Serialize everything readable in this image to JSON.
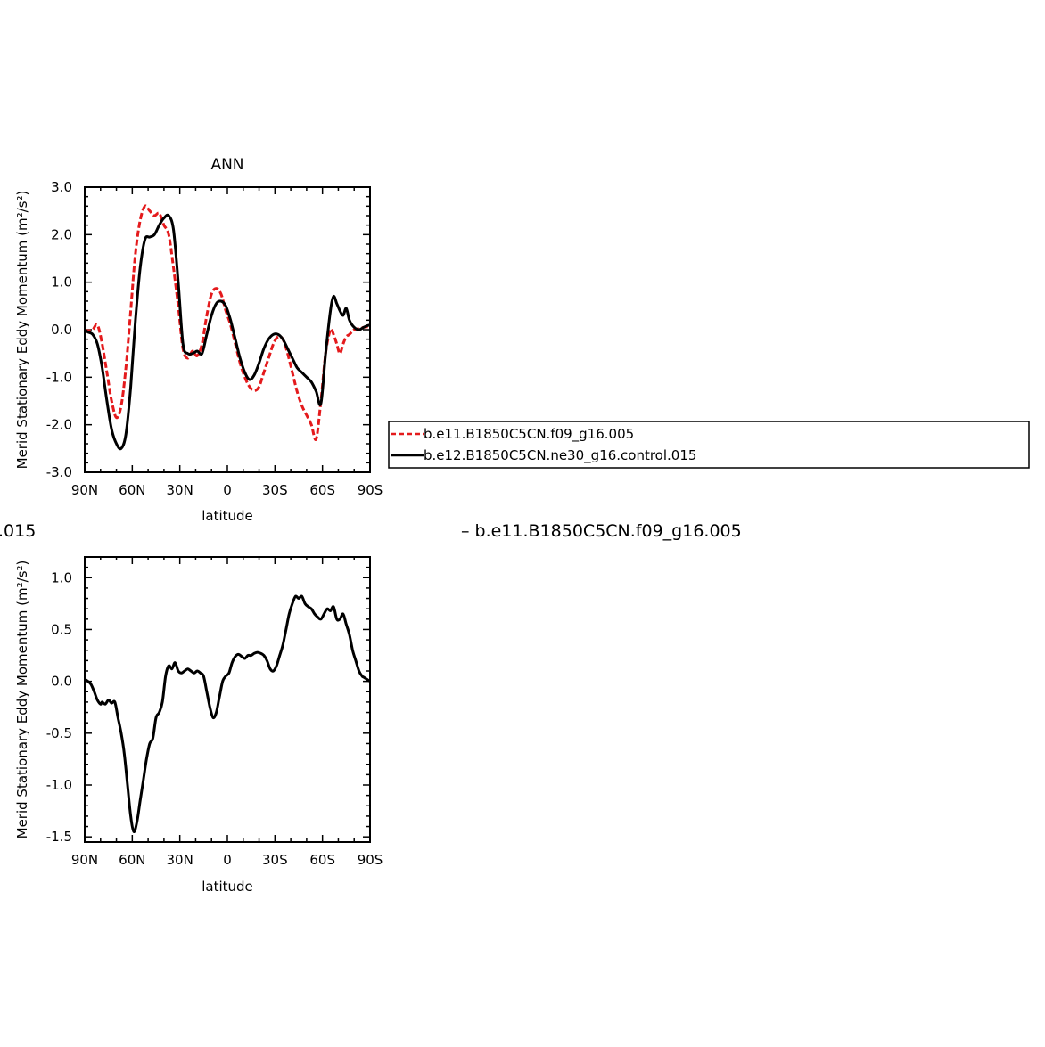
{
  "chart_data": [
    {
      "type": "line",
      "title": "ANN",
      "xlabel": "latitude",
      "ylabel": "Merid Stationary Eddy Momentum (m²/s²)",
      "xlim": [
        90,
        -90
      ],
      "ylim": [
        -3.0,
        3.0
      ],
      "x_ticks": [
        90,
        60,
        30,
        0,
        -30,
        -60,
        -90
      ],
      "x_tick_labels": [
        "90N",
        "60N",
        "30N",
        "0",
        "30S",
        "60S",
        "90S"
      ],
      "y_ticks": [
        3.0,
        2.0,
        1.0,
        0.0,
        -1.0,
        -2.0,
        -3.0
      ],
      "y_tick_labels": [
        "3.0",
        "2.0",
        "1.0",
        "0.0",
        "-1.0",
        "-2.0",
        "-3.0"
      ],
      "legend_position": "right",
      "series": [
        {
          "name": "b.e11.B1850C5CN.f09_g16.005",
          "color": "#e41a1c",
          "style": "dashed",
          "x": [
            90,
            88,
            85,
            82,
            79,
            76,
            73,
            70,
            67,
            64,
            61,
            58,
            55,
            52,
            49,
            46,
            43,
            40,
            37,
            34,
            31,
            28,
            25,
            22,
            19,
            16,
            13,
            10,
            7,
            4,
            1,
            -2,
            -5,
            -8,
            -11,
            -14,
            -17,
            -20,
            -23,
            -26,
            -29,
            -32,
            -35,
            -38,
            -41,
            -44,
            -47,
            -50,
            -53,
            -56,
            -59,
            -62,
            -65,
            -67,
            -69,
            -71,
            -73,
            -75,
            -77,
            -80,
            -83,
            -86,
            -88,
            -90
          ],
          "y": [
            0.0,
            -0.02,
            0.0,
            0.1,
            -0.3,
            -0.9,
            -1.5,
            -1.85,
            -1.6,
            -0.8,
            0.4,
            1.6,
            2.3,
            2.6,
            2.5,
            2.4,
            2.45,
            2.2,
            2.0,
            1.3,
            0.5,
            -0.4,
            -0.6,
            -0.45,
            -0.55,
            -0.3,
            0.3,
            0.75,
            0.87,
            0.75,
            0.4,
            0.1,
            -0.3,
            -0.7,
            -1.0,
            -1.2,
            -1.28,
            -1.2,
            -0.9,
            -0.6,
            -0.3,
            -0.15,
            -0.2,
            -0.5,
            -0.9,
            -1.3,
            -1.6,
            -1.8,
            -2.0,
            -2.3,
            -1.5,
            -0.5,
            0.0,
            -0.1,
            -0.3,
            -0.5,
            -0.3,
            -0.15,
            -0.1,
            0.0,
            0.02,
            0.05,
            0.06,
            0.05
          ]
        },
        {
          "name": "b.e12.B1850C5CN.ne30_g16.control.015",
          "color": "#000000",
          "style": "solid",
          "x": [
            90,
            88,
            85,
            82,
            79,
            76,
            73,
            70,
            67,
            64,
            61,
            58,
            55,
            52,
            49,
            46,
            43,
            40,
            37,
            34,
            31,
            28,
            25,
            22,
            19,
            16,
            13,
            10,
            7,
            4,
            1,
            -2,
            -5,
            -8,
            -11,
            -14,
            -17,
            -20,
            -23,
            -26,
            -29,
            -32,
            -35,
            -38,
            -41,
            -44,
            -47,
            -50,
            -53,
            -56,
            -59,
            -62,
            -65,
            -67,
            -69,
            -71,
            -73,
            -75,
            -77,
            -80,
            -83,
            -86,
            -88,
            -90
          ],
          "y": [
            0.0,
            -0.05,
            -0.1,
            -0.3,
            -0.8,
            -1.5,
            -2.1,
            -2.4,
            -2.5,
            -2.2,
            -1.2,
            0.2,
            1.3,
            1.9,
            1.95,
            2.0,
            2.2,
            2.35,
            2.4,
            2.1,
            1.0,
            -0.3,
            -0.5,
            -0.5,
            -0.45,
            -0.5,
            -0.1,
            0.3,
            0.55,
            0.6,
            0.5,
            0.2,
            -0.2,
            -0.6,
            -0.9,
            -1.05,
            -0.95,
            -0.7,
            -0.4,
            -0.2,
            -0.1,
            -0.1,
            -0.2,
            -0.4,
            -0.6,
            -0.8,
            -0.9,
            -1.0,
            -1.1,
            -1.3,
            -1.55,
            -0.5,
            0.4,
            0.7,
            0.55,
            0.4,
            0.3,
            0.45,
            0.2,
            0.05,
            0.0,
            0.05,
            0.08,
            0.1
          ]
        }
      ]
    },
    {
      "type": "line",
      "title": "",
      "xlabel": "latitude",
      "ylabel": "Merid Stationary Eddy Momentum (m²/s²)",
      "xlim": [
        90,
        -90
      ],
      "ylim": [
        -1.55,
        1.2
      ],
      "x_ticks": [
        90,
        60,
        30,
        0,
        -30,
        -60,
        -90
      ],
      "x_tick_labels": [
        "90N",
        "60N",
        "30N",
        "0",
        "30S",
        "60S",
        "90S"
      ],
      "y_ticks": [
        1.0,
        0.5,
        0.0,
        -0.5,
        -1.0,
        -1.5
      ],
      "y_tick_labels": [
        "1.0",
        "0.5",
        "0.0",
        "-0.5",
        "-1.0",
        "-1.5"
      ],
      "series": [
        {
          "color": "#000000",
          "style": "solid",
          "x": [
            90,
            88,
            86,
            84,
            82,
            80,
            79,
            77,
            75,
            73,
            71,
            69,
            67,
            65,
            63,
            61,
            59,
            57,
            55,
            53,
            51,
            49,
            47,
            45,
            43,
            41,
            39,
            37,
            35,
            33,
            31,
            29,
            27,
            25,
            23,
            21,
            19,
            17,
            15,
            13,
            11,
            9,
            7,
            5,
            3,
            1,
            -1,
            -3,
            -5,
            -7,
            -9,
            -11,
            -13,
            -15,
            -17,
            -19,
            -21,
            -23,
            -25,
            -27,
            -29,
            -31,
            -33,
            -35,
            -37,
            -39,
            -41,
            -43,
            -45,
            -47,
            -49,
            -51,
            -53,
            -55,
            -57,
            -59,
            -61,
            -63,
            -65,
            -67,
            -69,
            -71,
            -73,
            -75,
            -77,
            -79,
            -81,
            -83,
            -85,
            -86,
            -87,
            -88,
            -89,
            -90
          ],
          "y": [
            0.02,
            0.0,
            -0.03,
            -0.1,
            -0.18,
            -0.22,
            -0.2,
            -0.22,
            -0.18,
            -0.21,
            -0.2,
            -0.35,
            -0.5,
            -0.7,
            -1.0,
            -1.3,
            -1.45,
            -1.35,
            -1.15,
            -0.95,
            -0.75,
            -0.6,
            -0.55,
            -0.35,
            -0.3,
            -0.2,
            0.05,
            0.15,
            0.12,
            0.18,
            0.1,
            0.08,
            0.1,
            0.12,
            0.1,
            0.08,
            0.1,
            0.08,
            0.05,
            -0.1,
            -0.25,
            -0.35,
            -0.3,
            -0.15,
            0.0,
            0.05,
            0.08,
            0.18,
            0.24,
            0.26,
            0.24,
            0.22,
            0.25,
            0.25,
            0.27,
            0.28,
            0.27,
            0.25,
            0.2,
            0.12,
            0.1,
            0.15,
            0.25,
            0.35,
            0.5,
            0.65,
            0.75,
            0.82,
            0.8,
            0.82,
            0.75,
            0.72,
            0.7,
            0.65,
            0.62,
            0.6,
            0.65,
            0.7,
            0.68,
            0.72,
            0.6,
            0.6,
            0.65,
            0.55,
            0.45,
            0.3,
            0.2,
            0.1,
            0.05,
            0.04,
            0.03,
            0.02,
            0.01,
            0.0
          ]
        }
      ]
    }
  ],
  "legend_items": [
    {
      "label": "b.e11.B1850C5CN.f09_g16.005",
      "color": "#e41a1c",
      "style": "dashed"
    },
    {
      "label": "b.e12.B1850C5CN.ne30_g16.control.015",
      "color": "#000000",
      "style": "solid"
    }
  ],
  "cut_legend": {
    "left_fragment": ".015",
    "right_text": "– b.e11.B1850C5CN.f09_g16.005"
  }
}
